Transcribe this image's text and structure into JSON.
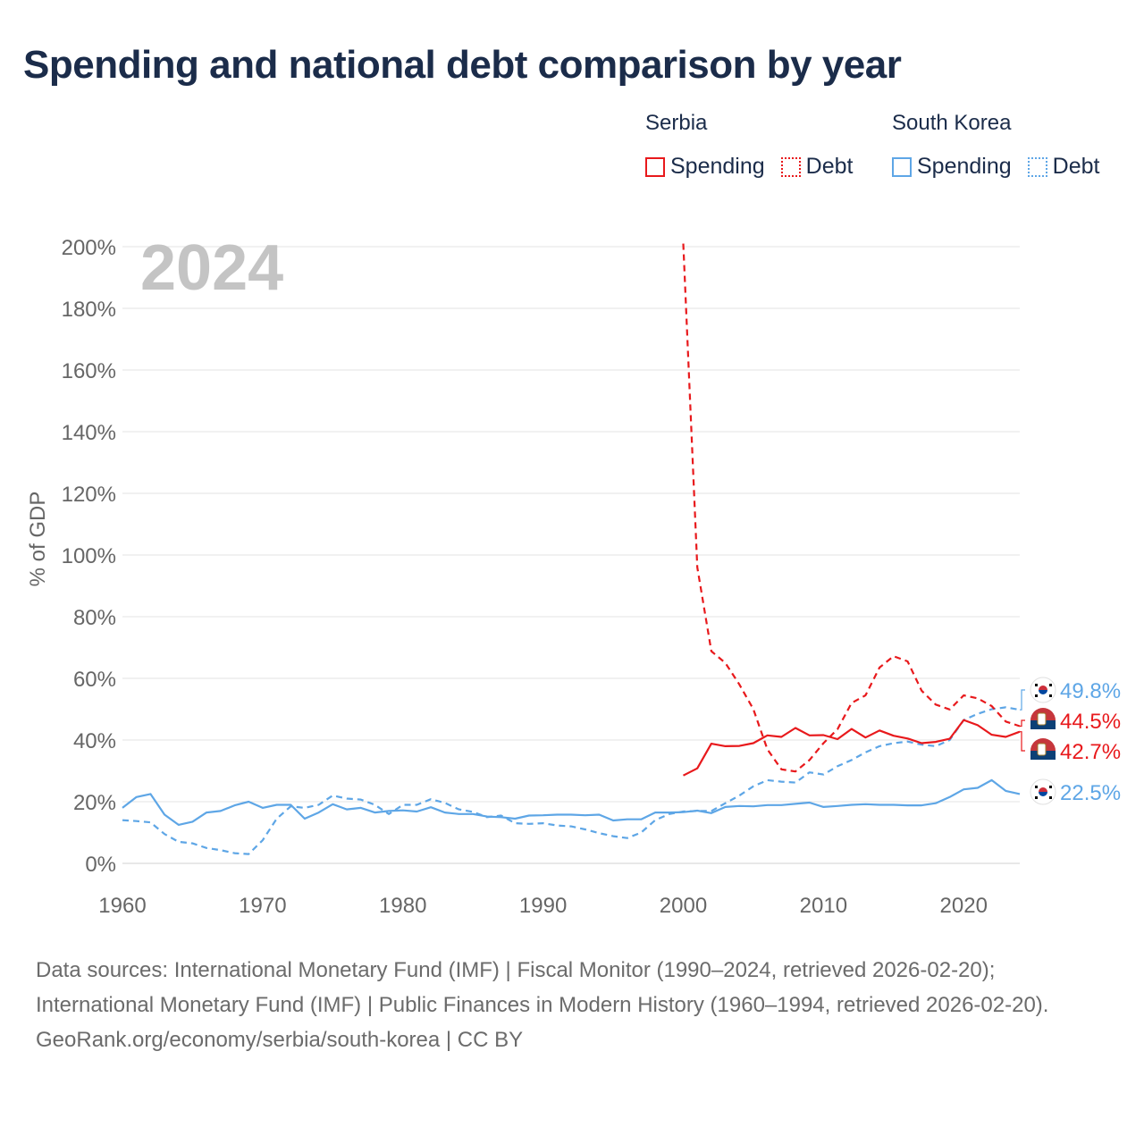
{
  "title": "Spending and national debt comparison by year",
  "legend": {
    "groups": [
      {
        "name": "Serbia",
        "color": "#e8191c",
        "items": [
          {
            "label": "Spending",
            "style": "solid"
          },
          {
            "label": "Debt",
            "style": "dotted"
          }
        ]
      },
      {
        "name": "South Korea",
        "color": "#5ea6e6",
        "items": [
          {
            "label": "Spending",
            "style": "solid"
          },
          {
            "label": "Debt",
            "style": "dotted"
          }
        ]
      }
    ]
  },
  "colors": {
    "serbia": "#e8191c",
    "korea": "#5ea6e6",
    "grid": "#e3e3e3",
    "year_watermark": "#c4c4c4",
    "axis_text": "#666666"
  },
  "chart_data": {
    "type": "line",
    "year_label": "2024",
    "ylabel": "% of GDP",
    "xlim": [
      1960,
      2024
    ],
    "ylim": [
      0,
      200
    ],
    "xticks": [
      1960,
      1970,
      1980,
      1990,
      2000,
      2010,
      2020
    ],
    "yticks": [
      0,
      20,
      40,
      60,
      80,
      100,
      120,
      140,
      160,
      180,
      200
    ],
    "ytick_labels": [
      "0%",
      "20%",
      "40%",
      "60%",
      "80%",
      "100%",
      "120%",
      "140%",
      "160%",
      "180%",
      "200%"
    ],
    "series": [
      {
        "name": "Serbia Spending",
        "country": "Serbia",
        "metric": "Spending",
        "dashed": false,
        "color": "#e8191c",
        "x": [
          2000,
          2001,
          2002,
          2003,
          2004,
          2005,
          2006,
          2007,
          2008,
          2009,
          2010,
          2011,
          2012,
          2013,
          2014,
          2015,
          2016,
          2017,
          2018,
          2019,
          2020,
          2021,
          2022,
          2023,
          2024
        ],
        "values": [
          28.5,
          30.8,
          38.8,
          38.0,
          38.1,
          39.0,
          41.5,
          41.0,
          43.9,
          41.5,
          41.6,
          40.3,
          43.6,
          40.8,
          43.1,
          41.4,
          40.5,
          39.0,
          39.4,
          40.4,
          46.5,
          44.8,
          41.7,
          41.0,
          42.7
        ],
        "end_label": "42.7%"
      },
      {
        "name": "Serbia Debt",
        "country": "Serbia",
        "metric": "Debt",
        "dashed": true,
        "color": "#e8191c",
        "x": [
          2000,
          2001,
          2002,
          2003,
          2004,
          2005,
          2006,
          2007,
          2008,
          2009,
          2010,
          2011,
          2012,
          2013,
          2014,
          2015,
          2016,
          2017,
          2018,
          2019,
          2020,
          2021,
          2022,
          2023,
          2024
        ],
        "values": [
          201,
          96,
          68.8,
          65.0,
          58.0,
          50.0,
          37.0,
          30.5,
          29.8,
          33.5,
          39.0,
          43.5,
          52.0,
          54.5,
          63.5,
          67.2,
          65.5,
          56.0,
          51.5,
          49.9,
          54.5,
          53.5,
          51.0,
          46.0,
          44.5
        ],
        "end_label": "44.5%"
      },
      {
        "name": "South Korea Spending",
        "country": "South Korea",
        "metric": "Spending",
        "dashed": false,
        "color": "#5ea6e6",
        "x": [
          1960,
          1961,
          1962,
          1963,
          1964,
          1965,
          1966,
          1967,
          1968,
          1969,
          1970,
          1971,
          1972,
          1973,
          1974,
          1975,
          1976,
          1977,
          1978,
          1979,
          1980,
          1981,
          1982,
          1983,
          1984,
          1985,
          1986,
          1987,
          1988,
          1989,
          1990,
          1991,
          1992,
          1993,
          1994,
          1995,
          1996,
          1997,
          1998,
          1999,
          2000,
          2001,
          2002,
          2003,
          2004,
          2005,
          2006,
          2007,
          2008,
          2009,
          2010,
          2011,
          2012,
          2013,
          2014,
          2015,
          2016,
          2017,
          2018,
          2019,
          2020,
          2021,
          2022,
          2023,
          2024
        ],
        "values": [
          18.0,
          21.5,
          22.5,
          15.8,
          12.5,
          13.5,
          16.5,
          17.0,
          18.8,
          20.0,
          18.0,
          19.0,
          19.0,
          14.5,
          16.5,
          19.2,
          17.5,
          18.0,
          16.5,
          17.0,
          17.2,
          16.8,
          18.2,
          16.5,
          16.0,
          16.0,
          15.2,
          15.0,
          14.5,
          15.5,
          15.6,
          15.8,
          15.8,
          15.6,
          15.8,
          13.9,
          14.3,
          14.3,
          16.5,
          16.5,
          16.6,
          17.1,
          16.3,
          18.3,
          18.6,
          18.5,
          18.9,
          18.9,
          19.3,
          19.7,
          18.3,
          18.6,
          19.0,
          19.2,
          19.0,
          19.0,
          18.8,
          18.8,
          19.5,
          21.5,
          24.0,
          24.5,
          27.0,
          23.5,
          22.5
        ],
        "end_label": "22.5%"
      },
      {
        "name": "South Korea Debt",
        "country": "South Korea",
        "metric": "Debt",
        "dashed": true,
        "color": "#5ea6e6",
        "x": [
          1960,
          1961,
          1962,
          1963,
          1964,
          1965,
          1966,
          1967,
          1968,
          1969,
          1970,
          1971,
          1972,
          1973,
          1974,
          1975,
          1976,
          1977,
          1978,
          1979,
          1980,
          1981,
          1982,
          1983,
          1984,
          1985,
          1986,
          1987,
          1988,
          1989,
          1990,
          1991,
          1992,
          1993,
          1994,
          1995,
          1996,
          1997,
          1998,
          1999,
          2000,
          2001,
          2002,
          2003,
          2004,
          2005,
          2006,
          2007,
          2008,
          2009,
          2010,
          2011,
          2012,
          2013,
          2014,
          2015,
          2016,
          2017,
          2018,
          2019,
          2020,
          2021,
          2022,
          2023,
          2024
        ],
        "values": [
          14.0,
          13.7,
          13.3,
          9.5,
          7.0,
          6.5,
          5.0,
          4.3,
          3.3,
          3.0,
          7.5,
          14.5,
          18.5,
          18.0,
          19.0,
          22.0,
          21.0,
          20.7,
          19.0,
          16.0,
          19.0,
          19.0,
          20.8,
          19.6,
          17.5,
          16.7,
          15.0,
          15.5,
          13.0,
          12.8,
          13.0,
          12.3,
          12.0,
          11.0,
          9.8,
          8.8,
          8.2,
          10.0,
          14.0,
          16.0,
          16.8,
          17.0,
          17.0,
          19.5,
          22.0,
          25.0,
          27.0,
          26.5,
          26.2,
          29.5,
          28.8,
          31.5,
          33.5,
          36.0,
          38.0,
          39.0,
          39.5,
          38.5,
          38.0,
          40.0,
          46.5,
          48.5,
          50.0,
          50.6,
          49.8
        ],
        "end_label": "49.8%"
      }
    ]
  },
  "footer": {
    "sources": "Data sources: International Monetary Fund (IMF) | Fiscal Monitor (1990–2024, retrieved 2026-02-20); International Monetary Fund (IMF) | Public Finances in Modern History (1960–1994, retrieved 2026-02-20).",
    "credit": "GeoRank.org/economy/serbia/south-korea | CC BY"
  }
}
